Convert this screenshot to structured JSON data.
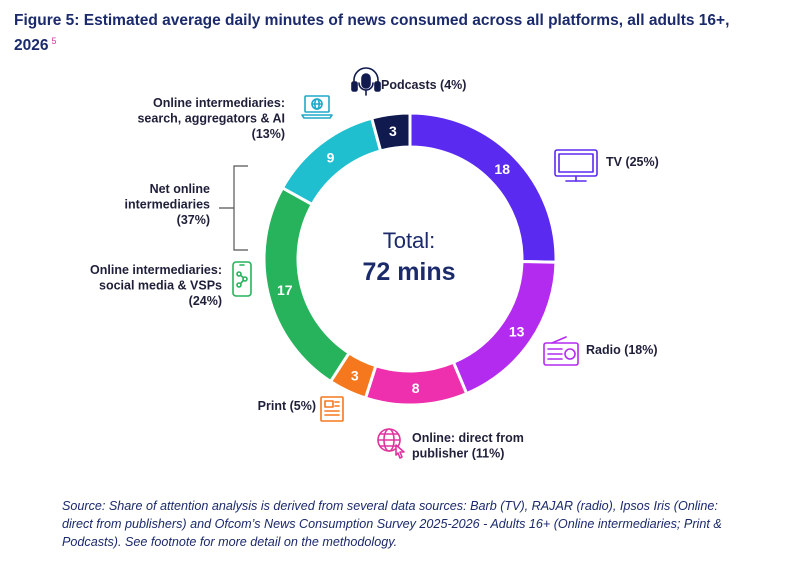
{
  "title": "Figure 5: Estimated average daily minutes of news consumed across all platforms, all adults 16+, 2026",
  "title_footnote": "5",
  "center": {
    "line1": "Total:",
    "line2": "72 mins"
  },
  "group_label": {
    "lines": [
      "Net online",
      "intermediaries",
      "(37%)"
    ]
  },
  "source": "Source: Share of attention analysis is derived from several data sources: Barb (TV), RAJAR (radio), Ipsos Iris (Online: direct from publishers) and Ofcom’s News Consumption Survey 2025-2026 - Adults 16+ (Online intermediaries; Print & Podcasts). See footnote for more detail on the methodology.",
  "chart_data": {
    "type": "pie",
    "donut": true,
    "total_minutes": 72,
    "slices": [
      {
        "name": "TV",
        "value": 18,
        "label_lines": [
          "TV (25%)"
        ],
        "color": "#5a2af0",
        "icon": "tv-icon",
        "icon_color": "#5a2af0"
      },
      {
        "name": "Radio",
        "value": 13,
        "label_lines": [
          "Radio (18%)"
        ],
        "color": "#b42bf0",
        "icon": "radio-icon",
        "icon_color": "#b42bf0"
      },
      {
        "name": "Online: direct from publisher",
        "value": 8,
        "label_lines": [
          "Online: direct from",
          "publisher (11%)"
        ],
        "color": "#ee2fae",
        "icon": "globe-cursor-icon",
        "icon_color": "#e0349f"
      },
      {
        "name": "Print",
        "value": 3,
        "label_lines": [
          "Print (5%)"
        ],
        "color": "#f5781e",
        "icon": "newspaper-icon",
        "icon_color": "#f5781e"
      },
      {
        "name": "Online intermediaries: social media & VSPs",
        "value": 17,
        "label_lines": [
          "Online intermediaries:",
          "social media & VSPs",
          "(24%)"
        ],
        "color": "#27b35c",
        "icon": "phone-network-icon",
        "icon_color": "#27b35c"
      },
      {
        "name": "Online intermediaries: search, aggregators & AI",
        "value": 9,
        "label_lines": [
          "Online intermediaries:",
          "search, aggregators & AI",
          "(13%)"
        ],
        "color": "#1fbfcf",
        "icon": "laptop-globe-icon",
        "icon_color": "#1fa8c8"
      },
      {
        "name": "Podcasts",
        "value": 3,
        "label_lines": [
          "Podcasts (4%)"
        ],
        "color": "#111a4f",
        "icon": "headphones-mic-icon",
        "icon_color": "#111a4f"
      }
    ]
  }
}
